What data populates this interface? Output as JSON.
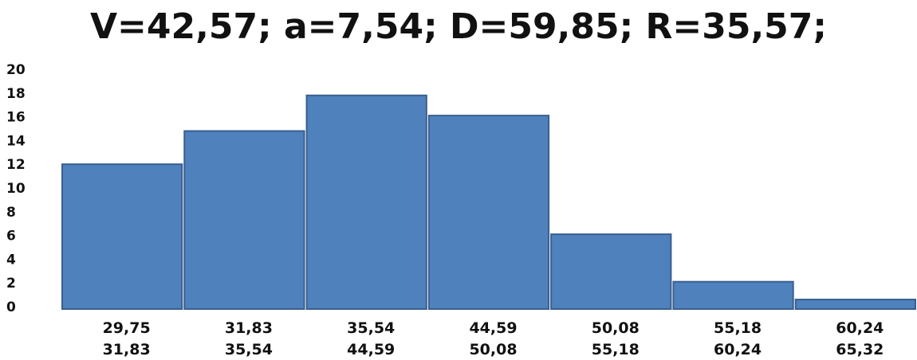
{
  "chart_data": {
    "type": "bar",
    "title": "V=42,57; a=7,54; D=59,85; R=35,57;",
    "xlabel": "",
    "ylabel": "",
    "ylim": [
      0,
      20
    ],
    "yticks": [
      "0",
      "2",
      "4",
      "6",
      "8",
      "10",
      "12",
      "14",
      "16",
      "18",
      "20"
    ],
    "categories": [
      [
        "29,75",
        "31,83"
      ],
      [
        "31,83",
        "35,54"
      ],
      [
        "35,54",
        "44,59"
      ],
      [
        "44,59",
        "50,08"
      ],
      [
        "50,08",
        "55,18"
      ],
      [
        "55,18",
        "60,24"
      ],
      [
        "60,24",
        "65,32"
      ]
    ],
    "values": [
      12,
      14.8,
      17.8,
      16.1,
      6.1,
      2.1,
      0.6
    ],
    "bar_color": "#4f81bd",
    "bar_edge_color": "#3a5f8f",
    "grid": false,
    "legend": "none"
  }
}
